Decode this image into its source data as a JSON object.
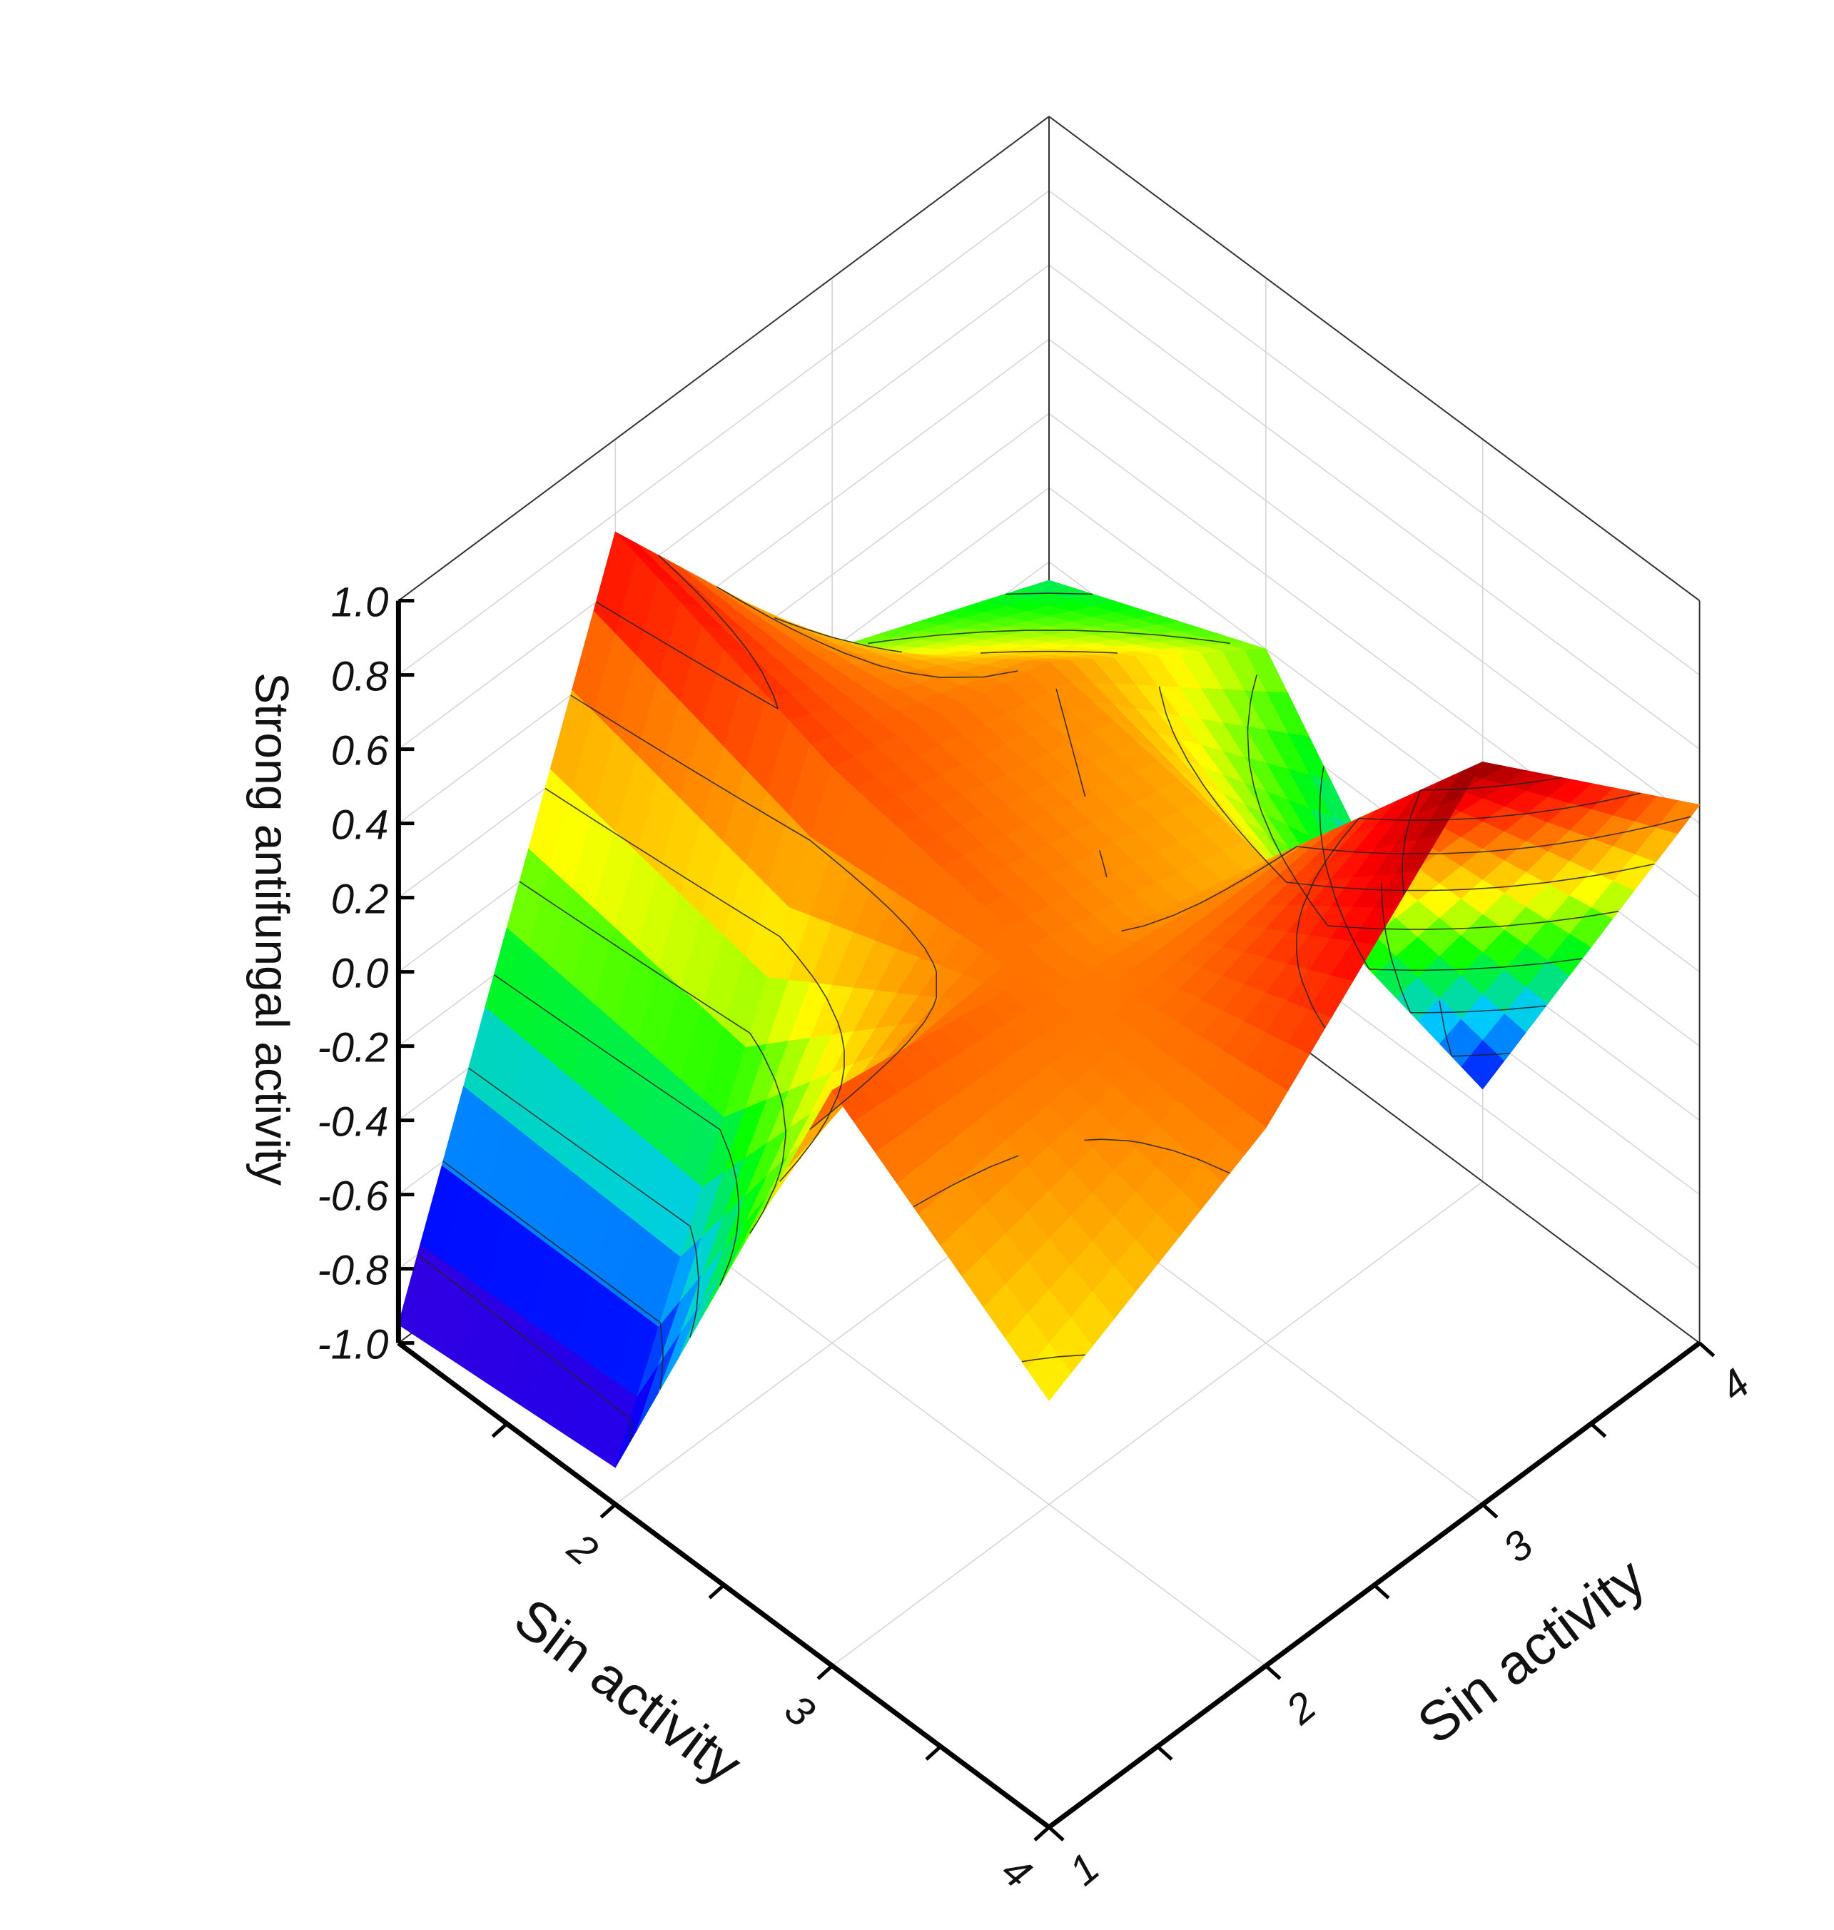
{
  "chart_data": {
    "type": "surface3d",
    "x_axis": {
      "label": "Sin activity",
      "ticks": [
        "2",
        "3",
        "4"
      ],
      "range": [
        1,
        4
      ]
    },
    "y_axis": {
      "label": "Sin activity",
      "ticks": [
        "1",
        "2",
        "3",
        "4"
      ],
      "range": [
        1,
        4
      ]
    },
    "z_axis": {
      "label": "Strong antifungal activity",
      "ticks": [
        "1.0",
        "0.8",
        "0.6",
        "0.4",
        "0.2",
        "0.0",
        "-0.2",
        "-0.4",
        "-0.6",
        "-0.8",
        "-1.0"
      ],
      "range": [
        -1.0,
        1.0
      ]
    },
    "x": [
      1,
      2,
      3,
      4
    ],
    "y": [
      1,
      2,
      3,
      4
    ],
    "z": [
      [
        0.15,
        0.45,
        1.0,
        0.45
      ],
      [
        0.55,
        0.45,
        0.3,
        -0.75
      ],
      [
        -0.9,
        0.55,
        0.4,
        0.0
      ],
      [
        -0.95,
        0.75,
        0.0,
        -0.25
      ]
    ],
    "colormap": [
      "#5b00c8",
      "#0000ff",
      "#00c8ff",
      "#00ff00",
      "#ffff00",
      "#ff8000",
      "#ff0000",
      "#8b0000"
    ],
    "contour_levels": [
      -0.8,
      -0.6,
      -0.4,
      -0.2,
      0.0,
      0.2,
      0.4,
      0.6,
      0.8
    ],
    "grid": true
  }
}
